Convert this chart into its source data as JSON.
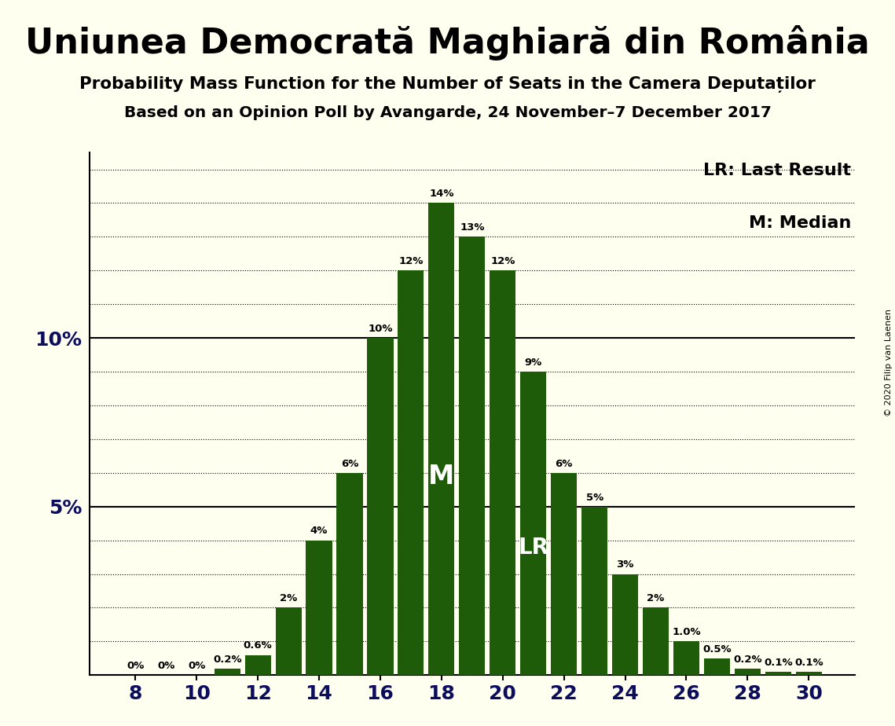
{
  "title": "Uniunea Democrată Maghiară din România",
  "subtitle1": "Probability Mass Function for the Number of Seats in the Camera Deputaților",
  "subtitle2": "Based on an Opinion Poll by Avangarde, 24 November–7 December 2017",
  "copyright": "© 2020 Filip van Laenen",
  "seats": [
    8,
    9,
    10,
    11,
    12,
    13,
    14,
    15,
    16,
    17,
    18,
    19,
    20,
    21,
    22,
    23,
    24,
    25,
    26,
    27,
    28,
    29,
    30
  ],
  "probabilities": [
    0.0,
    0.0,
    0.0,
    0.002,
    0.006,
    0.02,
    0.04,
    0.06,
    0.1,
    0.12,
    0.14,
    0.13,
    0.12,
    0.09,
    0.06,
    0.05,
    0.03,
    0.02,
    0.01,
    0.005,
    0.002,
    0.001,
    0.001
  ],
  "labels": [
    "0%",
    "0%",
    "0%",
    "0.2%",
    "0.6%",
    "2%",
    "4%",
    "6%",
    "10%",
    "12%",
    "14%",
    "13%",
    "12%",
    "9%",
    "6%",
    "5%",
    "3%",
    "2%",
    "1.0%",
    "0.5%",
    "0.2%",
    "0.1%",
    "0.1%"
  ],
  "show_label": [
    true,
    true,
    true,
    true,
    true,
    true,
    true,
    true,
    true,
    true,
    true,
    true,
    true,
    true,
    true,
    true,
    true,
    true,
    true,
    true,
    true,
    true,
    true
  ],
  "last_result_seat": 21,
  "median_seat": 18,
  "bar_color": "#1e5c0a",
  "background_color": "#fffff0",
  "text_color": "#0d0d5e",
  "ylim": [
    0,
    0.155
  ],
  "yticks_dotted": [
    0.01,
    0.02,
    0.03,
    0.04,
    0.06,
    0.07,
    0.08,
    0.09,
    0.11,
    0.12,
    0.13,
    0.14,
    0.15
  ],
  "yticks_solid": [
    0.05,
    0.1
  ],
  "legend_lr": "LR: Last Result",
  "legend_m": "M: Median"
}
